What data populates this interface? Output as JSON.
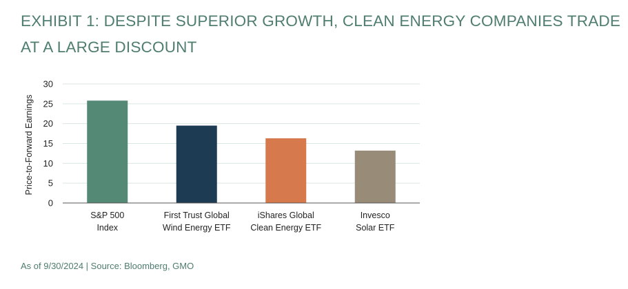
{
  "chart_data": {
    "type": "bar",
    "title": "EXHIBIT 1: DESPITE SUPERIOR GROWTH, CLEAN ENERGY COMPANIES TRADE AT A LARGE DISCOUNT",
    "ylabel": "Price-to-Forward Earnings",
    "xlabel": "",
    "ylim": [
      0,
      30
    ],
    "yticks": [
      0,
      5,
      10,
      15,
      20,
      25,
      30
    ],
    "grid": true,
    "categories": [
      [
        "S&P 500",
        "Index"
      ],
      [
        "First Trust Global",
        "Wind Energy ETF"
      ],
      [
        "iShares Global",
        "Clean Energy ETF"
      ],
      [
        "Invesco",
        "Solar ETF"
      ]
    ],
    "values": [
      25.8,
      19.5,
      16.3,
      13.2
    ],
    "colors": [
      "#548a75",
      "#1d3c54",
      "#d67a4e",
      "#988b78"
    ],
    "source": "As of 9/30/2024 | Source: Bloomberg, GMO"
  }
}
